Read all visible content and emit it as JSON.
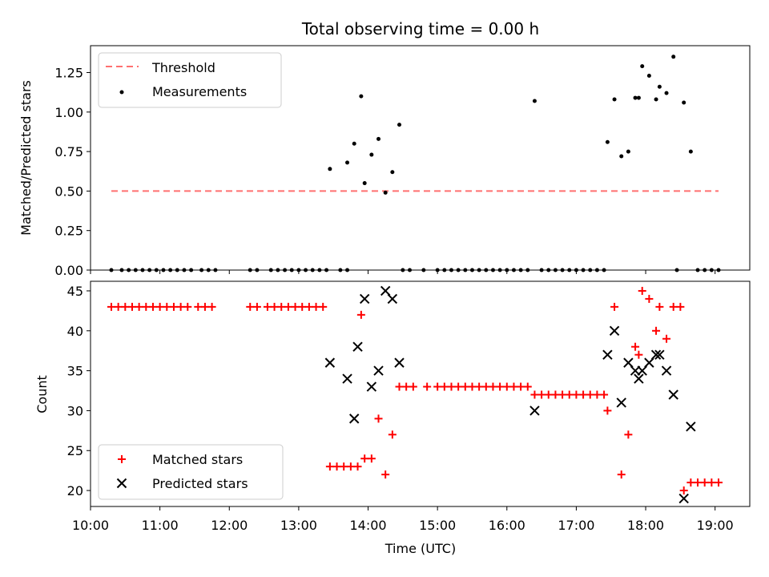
{
  "chart_data": [
    {
      "type": "scatter",
      "title": "Total observing time = 0.00 h",
      "xlabel": "",
      "ylabel": "Matched/Predicted stars",
      "xlim": [
        "10:00",
        "19:30"
      ],
      "ylim": [
        0,
        1.42
      ],
      "yticks": [
        "0.00",
        "0.25",
        "0.50",
        "0.75",
        "1.00",
        "1.25"
      ],
      "legend_position": "upper-left",
      "colors": {
        "threshold": "#ff7070",
        "measurements": "#000000"
      },
      "threshold": {
        "name": "Threshold",
        "y": 0.5,
        "x_start": "10:18",
        "x_end": "19:03"
      },
      "series": [
        {
          "name": "Measurements",
          "points": [
            [
              "10:18",
              0
            ],
            [
              "10:27",
              0
            ],
            [
              "10:33",
              0
            ],
            [
              "10:39",
              0
            ],
            [
              "10:45",
              0
            ],
            [
              "10:51",
              0
            ],
            [
              "10:57",
              0
            ],
            [
              "11:03",
              0
            ],
            [
              "11:09",
              0
            ],
            [
              "11:15",
              0
            ],
            [
              "11:21",
              0
            ],
            [
              "11:27",
              0
            ],
            [
              "11:36",
              0
            ],
            [
              "11:42",
              0
            ],
            [
              "11:48",
              0
            ],
            [
              "12:18",
              0
            ],
            [
              "12:24",
              0
            ],
            [
              "12:36",
              0
            ],
            [
              "12:42",
              0
            ],
            [
              "12:48",
              0
            ],
            [
              "12:54",
              0
            ],
            [
              "13:00",
              0
            ],
            [
              "13:06",
              0
            ],
            [
              "13:12",
              0
            ],
            [
              "13:18",
              0
            ],
            [
              "13:24",
              0
            ],
            [
              "13:36",
              0
            ],
            [
              "13:42",
              0
            ],
            [
              "13:27",
              0.64
            ],
            [
              "13:42",
              0.68
            ],
            [
              "13:48",
              0.8
            ],
            [
              "13:54",
              1.1
            ],
            [
              "13:57",
              0.55
            ],
            [
              "14:03",
              0.73
            ],
            [
              "14:09",
              0.83
            ],
            [
              "14:15",
              0.49
            ],
            [
              "14:21",
              0.62
            ],
            [
              "14:27",
              0.92
            ],
            [
              "14:30",
              0
            ],
            [
              "14:36",
              0
            ],
            [
              "14:48",
              0
            ],
            [
              "15:00",
              0
            ],
            [
              "15:06",
              0
            ],
            [
              "15:12",
              0
            ],
            [
              "15:18",
              0
            ],
            [
              "15:24",
              0
            ],
            [
              "15:30",
              0
            ],
            [
              "15:36",
              0
            ],
            [
              "15:42",
              0
            ],
            [
              "15:48",
              0
            ],
            [
              "15:54",
              0
            ],
            [
              "16:00",
              0
            ],
            [
              "16:06",
              0
            ],
            [
              "16:12",
              0
            ],
            [
              "16:18",
              0
            ],
            [
              "16:24",
              1.07
            ],
            [
              "16:30",
              0
            ],
            [
              "16:36",
              0
            ],
            [
              "16:42",
              0
            ],
            [
              "16:48",
              0
            ],
            [
              "16:54",
              0
            ],
            [
              "17:00",
              0
            ],
            [
              "17:06",
              0
            ],
            [
              "17:12",
              0
            ],
            [
              "17:18",
              0
            ],
            [
              "17:24",
              0
            ],
            [
              "17:27",
              0.81
            ],
            [
              "17:33",
              1.08
            ],
            [
              "17:39",
              0.72
            ],
            [
              "17:45",
              0.75
            ],
            [
              "17:51",
              1.09
            ],
            [
              "17:54",
              1.09
            ],
            [
              "17:57",
              1.29
            ],
            [
              "18:03",
              1.23
            ],
            [
              "18:09",
              1.08
            ],
            [
              "18:12",
              1.16
            ],
            [
              "18:18",
              1.12
            ],
            [
              "18:24",
              1.35
            ],
            [
              "18:27",
              0
            ],
            [
              "18:33",
              1.06
            ],
            [
              "18:39",
              0.75
            ],
            [
              "18:45",
              0
            ],
            [
              "18:51",
              0
            ],
            [
              "18:57",
              0
            ],
            [
              "19:03",
              0
            ]
          ]
        }
      ]
    },
    {
      "type": "scatter",
      "title": "",
      "xlabel": "Time (UTC)",
      "ylabel": "Count",
      "xlim": [
        "10:00",
        "19:30"
      ],
      "ylim": [
        18,
        46.2
      ],
      "xticks": [
        "10:00",
        "11:00",
        "12:00",
        "13:00",
        "14:00",
        "15:00",
        "16:00",
        "17:00",
        "18:00",
        "19:00"
      ],
      "yticks": [
        "20",
        "25",
        "30",
        "35",
        "40",
        "45"
      ],
      "legend_position": "lower-left",
      "colors": {
        "matched": "#ff0000",
        "predicted": "#000000"
      },
      "series": [
        {
          "name": "Matched stars",
          "marker": "plus",
          "points": [
            [
              "10:18",
              43
            ],
            [
              "10:24",
              43
            ],
            [
              "10:30",
              43
            ],
            [
              "10:36",
              43
            ],
            [
              "10:42",
              43
            ],
            [
              "10:48",
              43
            ],
            [
              "10:54",
              43
            ],
            [
              "11:00",
              43
            ],
            [
              "11:06",
              43
            ],
            [
              "11:12",
              43
            ],
            [
              "11:18",
              43
            ],
            [
              "11:24",
              43
            ],
            [
              "11:33",
              43
            ],
            [
              "11:39",
              43
            ],
            [
              "11:45",
              43
            ],
            [
              "12:18",
              43
            ],
            [
              "12:24",
              43
            ],
            [
              "12:33",
              43
            ],
            [
              "12:39",
              43
            ],
            [
              "12:45",
              43
            ],
            [
              "12:51",
              43
            ],
            [
              "12:57",
              43
            ],
            [
              "13:03",
              43
            ],
            [
              "13:09",
              43
            ],
            [
              "13:15",
              43
            ],
            [
              "13:21",
              43
            ],
            [
              "13:27",
              23
            ],
            [
              "13:33",
              23
            ],
            [
              "13:39",
              23
            ],
            [
              "13:45",
              23
            ],
            [
              "13:51",
              23
            ],
            [
              "13:54",
              42
            ],
            [
              "13:57",
              24
            ],
            [
              "14:03",
              24
            ],
            [
              "14:09",
              29
            ],
            [
              "14:15",
              22
            ],
            [
              "14:21",
              27
            ],
            [
              "14:27",
              33
            ],
            [
              "14:33",
              33
            ],
            [
              "14:39",
              33
            ],
            [
              "14:51",
              33
            ],
            [
              "15:00",
              33
            ],
            [
              "15:06",
              33
            ],
            [
              "15:12",
              33
            ],
            [
              "15:18",
              33
            ],
            [
              "15:24",
              33
            ],
            [
              "15:30",
              33
            ],
            [
              "15:36",
              33
            ],
            [
              "15:42",
              33
            ],
            [
              "15:48",
              33
            ],
            [
              "15:54",
              33
            ],
            [
              "16:00",
              33
            ],
            [
              "16:06",
              33
            ],
            [
              "16:12",
              33
            ],
            [
              "16:18",
              33
            ],
            [
              "16:24",
              32
            ],
            [
              "16:30",
              32
            ],
            [
              "16:36",
              32
            ],
            [
              "16:42",
              32
            ],
            [
              "16:48",
              32
            ],
            [
              "16:54",
              32
            ],
            [
              "17:00",
              32
            ],
            [
              "17:06",
              32
            ],
            [
              "17:12",
              32
            ],
            [
              "17:18",
              32
            ],
            [
              "17:24",
              32
            ],
            [
              "17:27",
              30
            ],
            [
              "17:33",
              43
            ],
            [
              "17:39",
              22
            ],
            [
              "17:45",
              27
            ],
            [
              "17:51",
              38
            ],
            [
              "17:54",
              37
            ],
            [
              "17:57",
              45
            ],
            [
              "18:03",
              44
            ],
            [
              "18:09",
              40
            ],
            [
              "18:12",
              43
            ],
            [
              "18:18",
              39
            ],
            [
              "18:24",
              43
            ],
            [
              "18:30",
              43
            ],
            [
              "18:33",
              20
            ],
            [
              "18:39",
              21
            ],
            [
              "18:45",
              21
            ],
            [
              "18:51",
              21
            ],
            [
              "18:57",
              21
            ],
            [
              "19:03",
              21
            ]
          ]
        },
        {
          "name": "Predicted stars",
          "marker": "x",
          "points": [
            [
              "13:27",
              36
            ],
            [
              "13:42",
              34
            ],
            [
              "13:48",
              29
            ],
            [
              "13:51",
              38
            ],
            [
              "13:57",
              44
            ],
            [
              "14:03",
              33
            ],
            [
              "14:09",
              35
            ],
            [
              "14:15",
              45
            ],
            [
              "14:21",
              44
            ],
            [
              "14:27",
              36
            ],
            [
              "16:24",
              30
            ],
            [
              "17:27",
              37
            ],
            [
              "17:33",
              40
            ],
            [
              "17:39",
              31
            ],
            [
              "17:45",
              36
            ],
            [
              "17:51",
              35
            ],
            [
              "17:54",
              34
            ],
            [
              "17:57",
              35
            ],
            [
              "18:03",
              36
            ],
            [
              "18:09",
              37
            ],
            [
              "18:12",
              37
            ],
            [
              "18:18",
              35
            ],
            [
              "18:24",
              32
            ],
            [
              "18:33",
              19
            ],
            [
              "18:39",
              28
            ]
          ]
        }
      ]
    }
  ]
}
